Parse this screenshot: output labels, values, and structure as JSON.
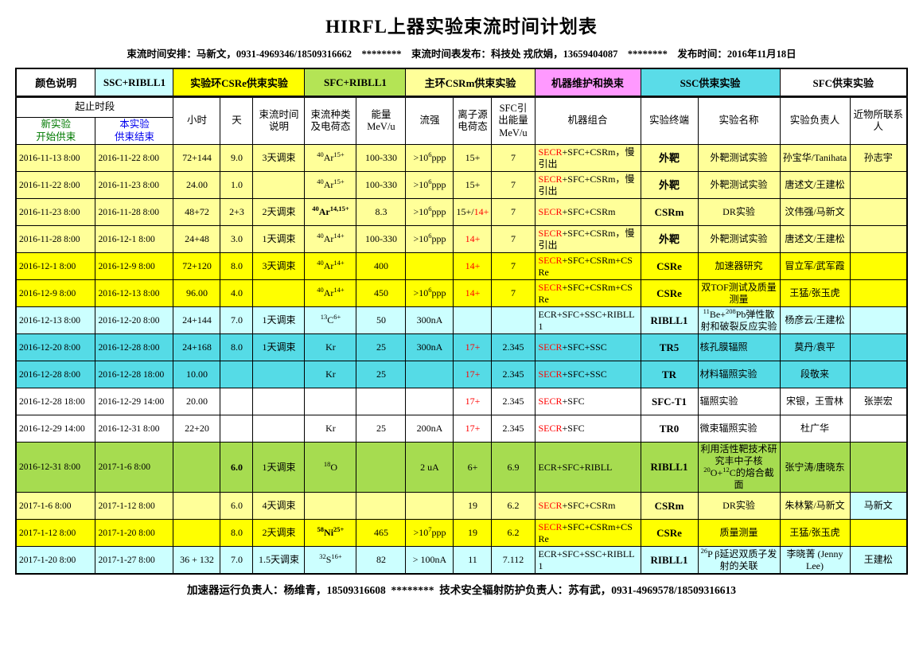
{
  "page": {
    "title": "HIRFL上器实验束流时间计划表",
    "info_line": "束流时间安排：马新文，0931-4969346/18509316662    ********    束流时间表发布：科技处 戎欣娟，13659404087    ********    发布时间：2016年11月18日",
    "footer_line": "加速器运行负责人：杨维青，18509316608  ********  技术安全辐射防护负责人：苏有武，0931-4969578/18509316613"
  },
  "colors": {
    "red_text": "#FF0000",
    "header_start_green": "#007A00",
    "header_end_blue": "#0000EE",
    "light_yellow": "#FFFF99",
    "bright_yellow": "#FFFF00",
    "light_cyan": "#CCFFFF",
    "turquoise": "#55DBE6",
    "green": "#A6DC50",
    "magenta": "#FF99FF",
    "white": "#FFFFFF"
  },
  "legend": {
    "items": [
      {
        "label": "颜色说明",
        "color": "#FFFFFF",
        "span": 1
      },
      {
        "label": "SSC+RIBLL1",
        "color": "#CCFFFF",
        "span": 1
      },
      {
        "label": "实验环CSRe供束实验",
        "color": "#FFFF00",
        "span": 3
      },
      {
        "label": "SFC+RIBLL1",
        "color": "#B4E455",
        "span": 2
      },
      {
        "label": "主环CSRm供束实验",
        "color": "#FFFF99",
        "span": 3
      },
      {
        "label": "机器维护和换束",
        "color": "#FF99FF",
        "span": 1
      },
      {
        "label": "SSC供束实验",
        "color": "#5ADCE8",
        "span": 2
      },
      {
        "label": "SFC供束实验",
        "color": "#FFFFFF",
        "span": 2
      }
    ]
  },
  "table": {
    "headers": {
      "range": "起止时段",
      "start": "新实验\n开始供束",
      "end": "本实验\n供束结束",
      "hours": "小时",
      "days": "天",
      "note": "束流时间\n说明",
      "species": "束流种类\n及电荷态",
      "energy": "能量\nMeV/u",
      "flow": "流强",
      "source": "离子源\n电荷态",
      "sfc": "SFC引\n出能量\nMeV/u",
      "combo": "机器组合",
      "terminal": "实验终端",
      "name": "实验名称",
      "lead": "实验负责人",
      "contact": "近物所联系\n人"
    },
    "column_keys": [
      "start",
      "end",
      "hours",
      "days",
      "note",
      "species",
      "energy",
      "flow",
      "source",
      "sfc",
      "combo",
      "terminal",
      "name",
      "lead",
      "contact"
    ],
    "rows": [
      {
        "bg": "#FFFF99",
        "start": "2016-11-13 8:00",
        "end": "2016-11-22 8:00",
        "hours": "72+144",
        "days": "9.0",
        "note": "3天调束",
        "species": "^{40}Ar^{15+}",
        "energy": "100-330",
        "flow": ">10^{6}ppp",
        "source_black": "15+",
        "source_red": "",
        "sfc": "7",
        "combo_red": "SECR",
        "combo_rest": "+SFC+CSRm，慢引出",
        "terminal": "外靶",
        "name": "外靶测试实验",
        "lead": "孙宝华/Tanihata",
        "contact": "孙志宇"
      },
      {
        "bg": "#FFFF99",
        "start": "2016-11-22 8:00",
        "end": "2016-11-23 8:00",
        "hours": "24.00",
        "days": "1.0",
        "note": "",
        "species": "^{40}Ar^{15+}",
        "energy": "100-330",
        "flow": ">10^{6}ppp",
        "source_black": "15+",
        "source_red": "",
        "sfc": "7",
        "combo_red": "SECR",
        "combo_rest": "+SFC+CSRm，慢引出",
        "terminal": "外靶",
        "name": "外靶测试实验",
        "lead": "唐述文/王建松",
        "contact": ""
      },
      {
        "bg": "#FFFF99",
        "start": "2016-11-23 8:00",
        "end": "2016-11-28 8:00",
        "hours": "48+72",
        "days": "2+3",
        "note": "2天调束",
        "species": "^{40}Ar^{14,15+}",
        "energy": "8.3",
        "flow": ">10^{6}ppp",
        "source_black": "15+/",
        "source_red": "14+",
        "sfc": "7",
        "combo_red": "SECR",
        "combo_rest": "+SFC+CSRm",
        "terminal": "CSRm",
        "name": "DR实验",
        "lead": "汶伟强/马新文",
        "contact": "",
        "bold": [
          "species"
        ]
      },
      {
        "bg": "#FFFF99",
        "start": "2016-11-28 8:00",
        "end": "2016-12-1 8:00",
        "hours": "24+48",
        "days": "3.0",
        "note": "1天调束",
        "species": "^{40}Ar^{14+}",
        "energy": "100-330",
        "flow": ">10^{6}ppp",
        "source_black": "",
        "source_red": "14+",
        "sfc": "7",
        "combo_red": "SECR",
        "combo_rest": "+SFC+CSRm，慢引出",
        "terminal": "外靶",
        "name": "外靶测试实验",
        "lead": "唐述文/王建松",
        "contact": ""
      },
      {
        "bg": "#FFFF00",
        "start": "2016-12-1 8:00",
        "end": "2016-12-9 8:00",
        "hours": "72+120",
        "days": "8.0",
        "note": "3天调束",
        "species": "^{40}Ar^{14+}",
        "energy": "400",
        "flow": "",
        "source_black": "",
        "source_red": "14+",
        "sfc": "7",
        "combo_red": "SECR",
        "combo_rest": "+SFC+CSRm+CSRe",
        "terminal": "CSRe",
        "name": "加速器研究",
        "lead": "冒立军/武军霞",
        "contact": ""
      },
      {
        "bg": "#FFFF00",
        "start": "2016-12-9 8:00",
        "end": "2016-12-13 8:00",
        "hours": "96.00",
        "days": "4.0",
        "note": "",
        "species": "^{40}Ar^{14+}",
        "energy": "450",
        "flow": ">10^{6}ppp",
        "source_black": "",
        "source_red": "14+",
        "sfc": "7",
        "combo_red": "SECR",
        "combo_rest": "+SFC+CSRm+CSRe",
        "terminal": "CSRe",
        "name": "双TOF测试及质量测量",
        "lead": "王猛/张玉虎",
        "contact": ""
      },
      {
        "bg": "#CCFFFF",
        "start": "2016-12-13 8:00",
        "end": "2016-12-20 8:00",
        "hours": "24+144",
        "days": "7.0",
        "note": "1天调束",
        "species": "^{13}C^{6+}",
        "energy": "50",
        "flow": "300nA",
        "source_black": "",
        "source_red": "",
        "sfc": "",
        "combo_red": "",
        "combo_rest": "ECR+SFC+SSC+RIBLL1",
        "terminal": "RIBLL1",
        "name": "^{11}Be+^{208}Pb弹性散射和破裂反应实验",
        "lead": "杨彦云/王建松",
        "contact": ""
      },
      {
        "bg": "#55DBE6",
        "start": "2016-12-20 8:00",
        "end": "2016-12-28 8:00",
        "hours": "24+168",
        "days": "8.0",
        "note": "1天调束",
        "species": "Kr",
        "energy": "25",
        "flow": "300nA",
        "source_black": "",
        "source_red": "17+",
        "sfc": "2.345",
        "combo_red": "SECR",
        "combo_rest": "+SFC+SSC",
        "terminal": "TR5",
        "name": "核孔膜辐照",
        "lead": "莫丹/袁平",
        "contact": "",
        "align": {
          "name": "left"
        }
      },
      {
        "bg": "#55DBE6",
        "start": "2016-12-28 8:00",
        "end": "2016-12-28 18:00",
        "hours": "10.00",
        "days": "",
        "note": "",
        "species": "Kr",
        "energy": "25",
        "flow": "",
        "source_black": "",
        "source_red": "17+",
        "sfc": "2.345",
        "combo_red": "SECR",
        "combo_rest": "+SFC+SSC",
        "terminal": "TR",
        "name": "材料辐照实验",
        "lead": "段敬来",
        "contact": "",
        "align": {
          "name": "left"
        }
      },
      {
        "bg": "#FFFFFF",
        "start": "2016-12-28 18:00",
        "end": "2016-12-29 14:00",
        "hours": "20.00",
        "days": "",
        "note": "",
        "species": "",
        "energy": "",
        "flow": "",
        "source_black": "",
        "source_red": "17+",
        "sfc": "2.345",
        "combo_red": "SECR",
        "combo_rest": "+SFC",
        "terminal": "SFC-T1",
        "name": "辐照实验",
        "lead": "宋银，王雪林",
        "contact": "张崇宏",
        "align": {
          "name": "left"
        }
      },
      {
        "bg": "#FFFFFF",
        "start": "2016-12-29 14:00",
        "end": "2016-12-31 8:00",
        "hours": "22+20",
        "days": "",
        "note": "",
        "species": "Kr",
        "energy": "25",
        "flow": "200nA",
        "source_black": "",
        "source_red": "17+",
        "sfc": "2.345",
        "combo_red": "SECR",
        "combo_rest": "+SFC",
        "terminal": "TR0",
        "name": "微束辐照实验",
        "lead": "杜广华",
        "contact": "",
        "align": {
          "name": "left"
        }
      },
      {
        "bg": "#A6DC50",
        "start": "2016-12-31 8:00",
        "end": "2017-1-6 8:00",
        "hours": "",
        "days": "6.0",
        "note": "1天调束",
        "species": "^{18}O",
        "energy": "",
        "flow": "2 uA",
        "source_black": "6+",
        "source_red": "",
        "sfc": "6.9",
        "combo_red": "",
        "combo_rest": "ECR+SFC+RIBLL",
        "terminal": "RIBLL1",
        "name": "利用活性靶技术研究丰中子核^{20}O+^{12}C的熔合截面",
        "lead": "张宁涛/唐晓东",
        "contact": "",
        "bold": [
          "days"
        ]
      },
      {
        "bg": "#FFFF99",
        "start": "2017-1-6 8:00",
        "end": "2017-1-12 8:00",
        "hours": "",
        "days": "6.0",
        "note": "4天调束",
        "species": "",
        "energy": "",
        "flow": "",
        "source_black": "19",
        "source_red": "",
        "sfc": "6.2",
        "combo_red": "SECR",
        "combo_rest": "+SFC+CSRm",
        "terminal": "CSRm",
        "name": "DR实验",
        "lead": "朱林繁/马新文",
        "contact": "马新文",
        "cell_bg": {
          "contact": "#CCFFFF"
        }
      },
      {
        "bg": "#FFFF00",
        "start": "2017-1-12 8:00",
        "end": "2017-1-20 8:00",
        "hours": "",
        "days": "8.0",
        "note": "2天调束",
        "species": "^{58}Ni^{25+}",
        "energy": "465",
        "flow": ">10^{7}ppp",
        "source_black": "19",
        "source_red": "",
        "sfc": "6.2",
        "combo_red": "SECR",
        "combo_rest": "+SFC+CSRm+CSRe",
        "terminal": "CSRe",
        "name": "质量测量",
        "lead": "王猛/张玉虎",
        "contact": "",
        "bold": [
          "species"
        ]
      },
      {
        "bg": "#CCFFFF",
        "start": "2017-1-20 8:00",
        "end": "2017-1-27 8:00",
        "hours": "36 + 132",
        "days": "7.0",
        "note": "1.5天调束",
        "species": "^{32}S^{16+}",
        "energy": "82",
        "flow": "> 100nA",
        "source_black": "11",
        "source_red": "",
        "sfc": "7.112",
        "combo_red": "",
        "combo_rest": "ECR+SFC+SSC+RIBLL1",
        "terminal": "RIBLL1",
        "name": "^{26}P β延迟双质子发射的关联",
        "lead": "李晓菁 (Jenny Lee)",
        "contact": "王建松"
      }
    ]
  }
}
